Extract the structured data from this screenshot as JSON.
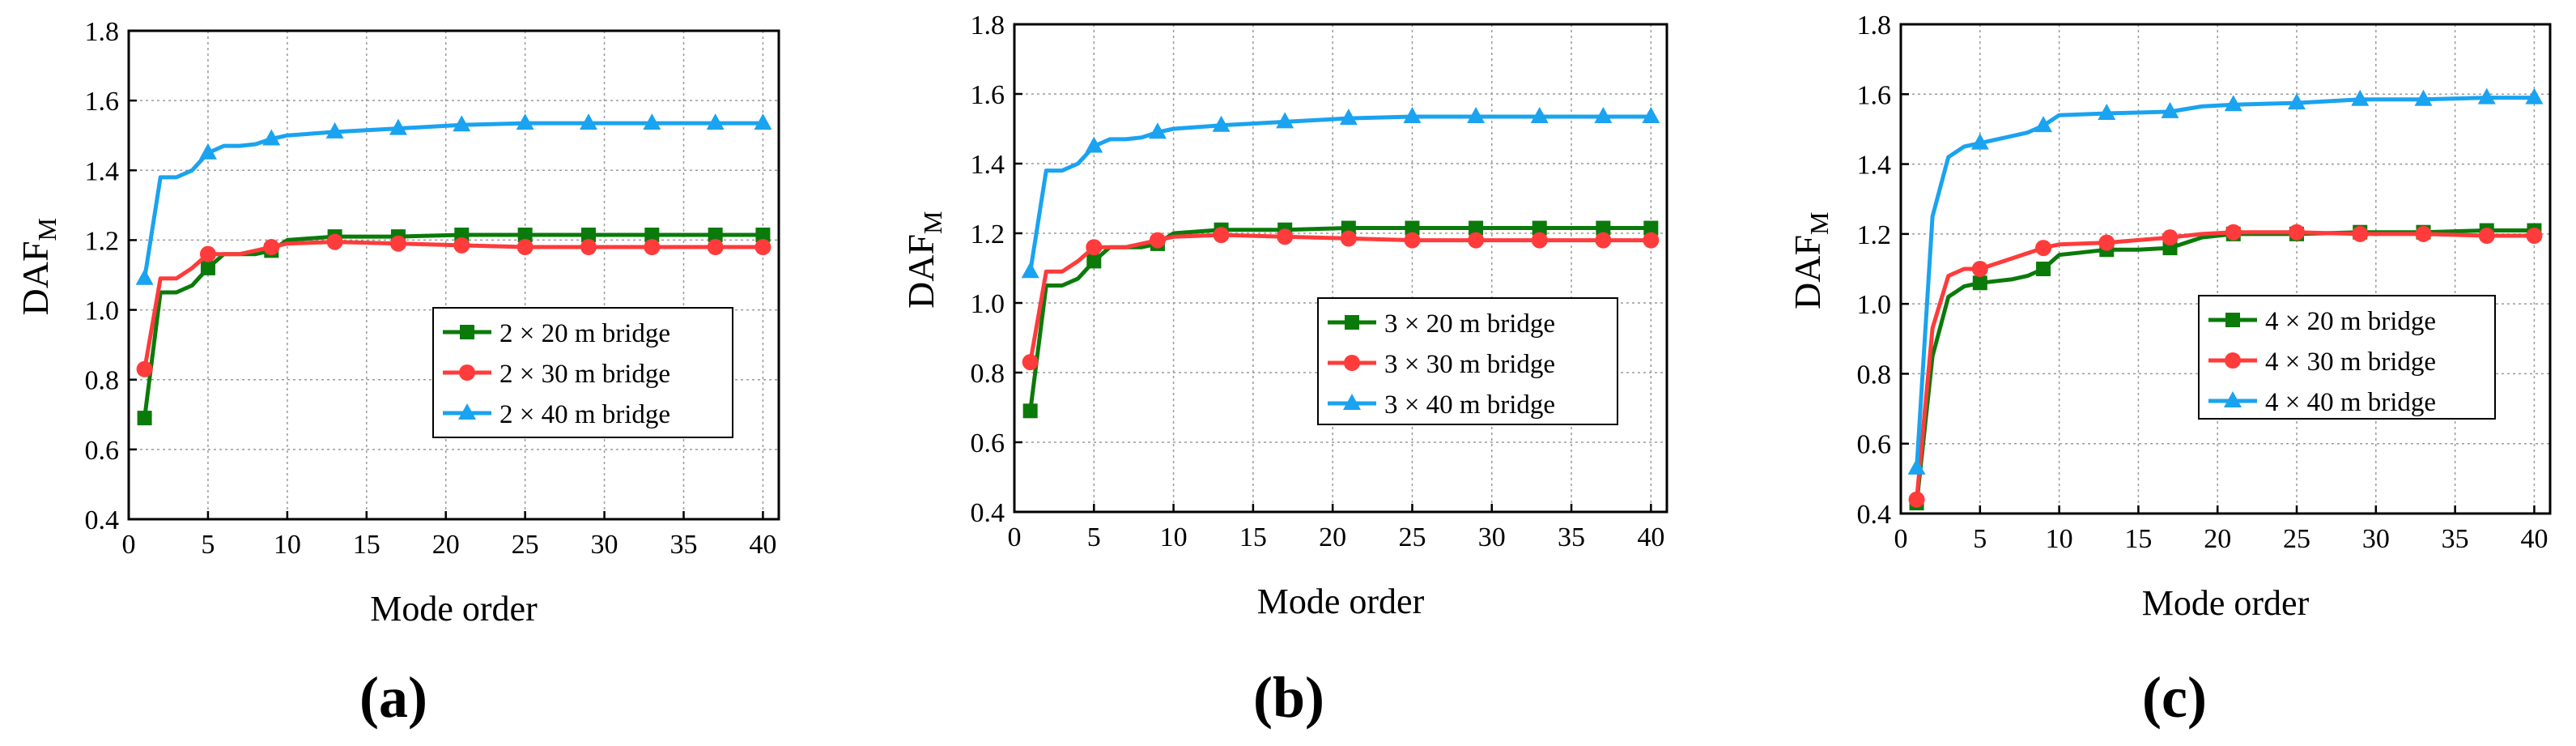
{
  "colors": {
    "green": "#0a7a0a",
    "red": "#ff3b3b",
    "blue": "#1aa3f0",
    "grid": "#9a9a9a",
    "axis": "#000000"
  },
  "chart_data": [
    {
      "type": "line",
      "panel_label": "(a)",
      "xlabel": "Mode order",
      "ylabel_main": "DAF",
      "ylabel_sub": "M",
      "xlim": [
        0,
        41
      ],
      "ylim": [
        0.4,
        1.8
      ],
      "xticks": [
        0,
        5,
        10,
        15,
        20,
        25,
        30,
        35,
        40
      ],
      "yticks": [
        0.4,
        0.6,
        0.8,
        1.0,
        1.2,
        1.4,
        1.6,
        1.8
      ],
      "ytick_labels": [
        "0.4",
        "0.6",
        "0.8",
        "1.0",
        "1.2",
        "1.4",
        "1.6",
        "1.8"
      ],
      "legend_position": "center-right",
      "series": [
        {
          "name": "2 × 20 m bridge",
          "color": "#0a7a0a",
          "marker": "square",
          "x": [
            1,
            2,
            3,
            4,
            5,
            6,
            7,
            8,
            9,
            10,
            13,
            17,
            21,
            25,
            29,
            33,
            37,
            40
          ],
          "y": [
            0.69,
            1.05,
            1.05,
            1.07,
            1.12,
            1.16,
            1.16,
            1.16,
            1.17,
            1.2,
            1.21,
            1.21,
            1.215,
            1.215,
            1.215,
            1.215,
            1.215,
            1.215
          ],
          "marker_x": [
            1,
            5,
            9,
            13,
            17,
            21,
            25,
            29,
            33,
            37,
            40
          ]
        },
        {
          "name": "2 × 30 m bridge",
          "color": "#ff3b3b",
          "marker": "circle",
          "x": [
            1,
            2,
            3,
            4,
            5,
            6,
            7,
            8,
            9,
            10,
            13,
            17,
            21,
            25,
            29,
            33,
            37,
            40
          ],
          "y": [
            0.83,
            1.09,
            1.09,
            1.12,
            1.16,
            1.16,
            1.16,
            1.17,
            1.18,
            1.19,
            1.195,
            1.19,
            1.185,
            1.18,
            1.18,
            1.18,
            1.18,
            1.18
          ],
          "marker_x": [
            1,
            5,
            9,
            13,
            17,
            21,
            25,
            29,
            33,
            37,
            40
          ]
        },
        {
          "name": "2 × 40 m bridge",
          "color": "#1aa3f0",
          "marker": "triangle",
          "x": [
            1,
            2,
            3,
            4,
            5,
            6,
            7,
            8,
            9,
            10,
            13,
            17,
            21,
            25,
            29,
            33,
            37,
            40
          ],
          "y": [
            1.09,
            1.38,
            1.38,
            1.4,
            1.45,
            1.47,
            1.47,
            1.475,
            1.49,
            1.5,
            1.51,
            1.52,
            1.53,
            1.535,
            1.535,
            1.535,
            1.535,
            1.535
          ],
          "marker_x": [
            1,
            5,
            9,
            13,
            17,
            21,
            25,
            29,
            33,
            37,
            40
          ]
        }
      ]
    },
    {
      "type": "line",
      "panel_label": "(b)",
      "xlabel": "Mode order",
      "ylabel_main": "DAF",
      "ylabel_sub": "M",
      "xlim": [
        0,
        41
      ],
      "ylim": [
        0.4,
        1.8
      ],
      "xticks": [
        0,
        5,
        10,
        15,
        20,
        25,
        30,
        35,
        40
      ],
      "yticks": [
        0.4,
        0.6,
        0.8,
        1.0,
        1.2,
        1.4,
        1.6,
        1.8
      ],
      "ytick_labels": [
        "0.4",
        "0.6",
        "0.8",
        "1.0",
        "1.2",
        "1.4",
        "1.6",
        "1.8"
      ],
      "legend_position": "center-right",
      "series": [
        {
          "name": "3 × 20 m bridge",
          "color": "#0a7a0a",
          "marker": "square",
          "x": [
            1,
            2,
            3,
            4,
            5,
            6,
            7,
            8,
            9,
            10,
            13,
            17,
            21,
            25,
            29,
            33,
            37,
            40
          ],
          "y": [
            0.69,
            1.05,
            1.05,
            1.07,
            1.12,
            1.16,
            1.16,
            1.16,
            1.17,
            1.2,
            1.21,
            1.21,
            1.215,
            1.215,
            1.215,
            1.215,
            1.215,
            1.215
          ],
          "marker_x": [
            1,
            5,
            9,
            13,
            17,
            21,
            25,
            29,
            33,
            37,
            40
          ]
        },
        {
          "name": "3 × 30 m bridge",
          "color": "#ff3b3b",
          "marker": "circle",
          "x": [
            1,
            2,
            3,
            4,
            5,
            6,
            7,
            8,
            9,
            10,
            13,
            17,
            21,
            25,
            29,
            33,
            37,
            40
          ],
          "y": [
            0.83,
            1.09,
            1.09,
            1.12,
            1.16,
            1.16,
            1.16,
            1.17,
            1.18,
            1.19,
            1.195,
            1.19,
            1.185,
            1.18,
            1.18,
            1.18,
            1.18,
            1.18
          ],
          "marker_x": [
            1,
            5,
            9,
            13,
            17,
            21,
            25,
            29,
            33,
            37,
            40
          ]
        },
        {
          "name": "3 × 40 m bridge",
          "color": "#1aa3f0",
          "marker": "triangle",
          "x": [
            1,
            2,
            3,
            4,
            5,
            6,
            7,
            8,
            9,
            10,
            13,
            17,
            21,
            25,
            29,
            33,
            37,
            40
          ],
          "y": [
            1.09,
            1.38,
            1.38,
            1.4,
            1.45,
            1.47,
            1.47,
            1.475,
            1.49,
            1.5,
            1.51,
            1.52,
            1.53,
            1.535,
            1.535,
            1.535,
            1.535,
            1.535
          ],
          "marker_x": [
            1,
            5,
            9,
            13,
            17,
            21,
            25,
            29,
            33,
            37,
            40
          ]
        }
      ]
    },
    {
      "type": "line",
      "panel_label": "(c)",
      "xlabel": "Mode order",
      "ylabel_main": "DAF",
      "ylabel_sub": "M",
      "xlim": [
        0,
        41
      ],
      "ylim": [
        0.4,
        1.8
      ],
      "xticks": [
        0,
        5,
        10,
        15,
        20,
        25,
        30,
        35,
        40
      ],
      "yticks": [
        0.4,
        0.6,
        0.8,
        1.0,
        1.2,
        1.4,
        1.6,
        1.8
      ],
      "ytick_labels": [
        "0.4",
        "0.6",
        "0.8",
        "1.0",
        "1.2",
        "1.4",
        "1.6",
        "1.8"
      ],
      "legend_position": "center-right",
      "series": [
        {
          "name": "4 × 20 m bridge",
          "color": "#0a7a0a",
          "marker": "square",
          "x": [
            1,
            2,
            3,
            4,
            5,
            7,
            8,
            9,
            10,
            13,
            15,
            17,
            19,
            21,
            25,
            29,
            33,
            37,
            40
          ],
          "y": [
            0.43,
            0.85,
            1.02,
            1.05,
            1.06,
            1.07,
            1.08,
            1.1,
            1.14,
            1.155,
            1.155,
            1.16,
            1.19,
            1.2,
            1.2,
            1.205,
            1.205,
            1.21,
            1.21
          ],
          "marker_x": [
            1,
            5,
            9,
            13,
            17,
            21,
            25,
            29,
            33,
            37,
            40
          ]
        },
        {
          "name": "4 × 30 m bridge",
          "color": "#ff3b3b",
          "marker": "circle",
          "x": [
            1,
            2,
            3,
            4,
            5,
            7,
            9,
            10,
            13,
            17,
            19,
            21,
            25,
            29,
            33,
            37,
            40
          ],
          "y": [
            0.44,
            0.93,
            1.08,
            1.1,
            1.1,
            1.13,
            1.16,
            1.17,
            1.175,
            1.19,
            1.2,
            1.205,
            1.205,
            1.2,
            1.2,
            1.195,
            1.195
          ],
          "marker_x": [
            1,
            5,
            9,
            13,
            17,
            21,
            25,
            29,
            33,
            37,
            40
          ]
        },
        {
          "name": "4 × 40 m bridge",
          "color": "#1aa3f0",
          "marker": "triangle",
          "x": [
            1,
            2,
            3,
            4,
            5,
            7,
            8,
            9,
            10,
            13,
            17,
            19,
            21,
            25,
            29,
            33,
            37,
            40
          ],
          "y": [
            0.53,
            1.25,
            1.42,
            1.45,
            1.46,
            1.48,
            1.49,
            1.51,
            1.54,
            1.545,
            1.55,
            1.565,
            1.57,
            1.575,
            1.585,
            1.585,
            1.59,
            1.59
          ],
          "marker_x": [
            1,
            5,
            9,
            13,
            17,
            21,
            25,
            29,
            33,
            37,
            40
          ]
        }
      ]
    }
  ]
}
